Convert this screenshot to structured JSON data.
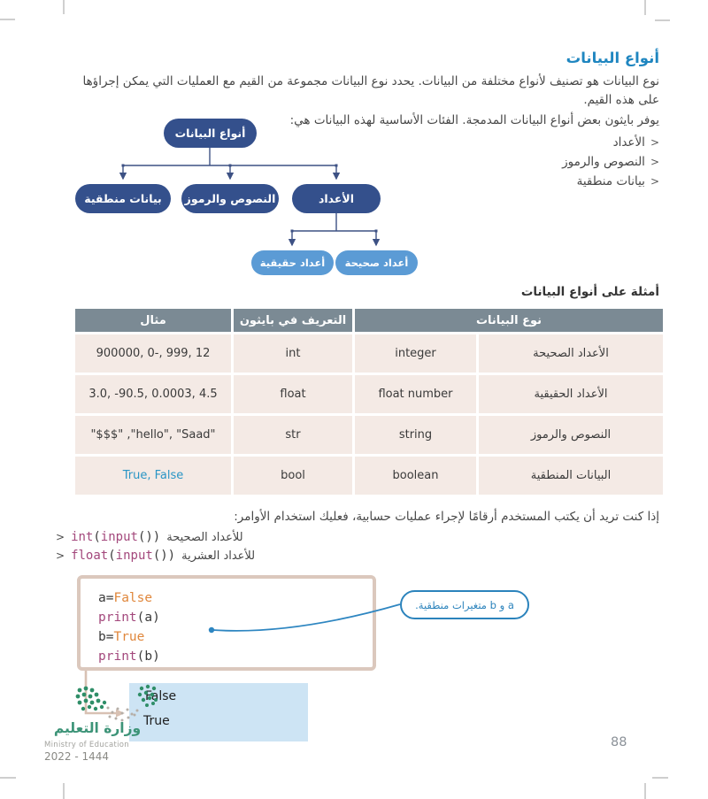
{
  "page": {
    "title": "أنواع البيانات",
    "intro": "نوع البيانات هو تصنيف لأنواع مختلفة من البيانات. يحدد نوع البيانات مجموعة من القيم مع العمليات التي يمكن إجراؤها على هذه القيم.",
    "intro2": "يوفر بايثون بعض أنواع البيانات المدمجة. الفئات الأساسية لهذه البيانات هي:",
    "bullet_glyph": ">",
    "bullets": [
      "الأعداد",
      "النصوص والرموز",
      "بيانات منطقية"
    ],
    "page_number": "88"
  },
  "diagram": {
    "root": "أنواع البيانات",
    "level1": [
      "بيانات منطقية",
      "النصوص والرموز",
      "الأعداد"
    ],
    "level2": [
      "أعداد حقيقية",
      "أعداد صحيحة"
    ]
  },
  "table": {
    "caption": "أمثلة على أنواع البيانات",
    "col_example": "مثال",
    "col_pydef": "التعريف في بايثون",
    "col_type": "نوع البيانات",
    "rows": [
      {
        "example": "900000, 0-, 999, 12",
        "pydef": "int",
        "name_en": "integer",
        "name_ar": "الأعداد الصحيحة"
      },
      {
        "example": "3.0, -90.5, 0.0003, 4.5",
        "pydef": "float",
        "name_en": "float number",
        "name_ar": "الأعداد الحقيقية"
      },
      {
        "example": "\"$$$\" ,\"hello\", \"Saad\"",
        "pydef": "str",
        "name_en": "string",
        "name_ar": "النصوص والرموز"
      },
      {
        "example": "True, False",
        "pydef": "bool",
        "name_en": "boolean",
        "name_ar": "البيانات المنطقية"
      }
    ]
  },
  "commands": {
    "lead": "إذا كنت تريد أن يكتب المستخدم أرقامًا لإجراء عمليات حسابية، فعليك استخدام الأوامر:",
    "marker": ">",
    "lines": [
      {
        "tokens": [
          {
            "t": "int",
            "c": "fn"
          },
          {
            "t": "(",
            "c": "plain"
          },
          {
            "t": "input",
            "c": "fn"
          },
          {
            "t": "())",
            "c": "plain"
          }
        ],
        "label": "للأعداد الصحيحة"
      },
      {
        "tokens": [
          {
            "t": "float",
            "c": "fn"
          },
          {
            "t": "(",
            "c": "plain"
          },
          {
            "t": "input",
            "c": "fn"
          },
          {
            "t": "())",
            "c": "plain"
          }
        ],
        "label": "للأعداد العشرية"
      }
    ]
  },
  "code_block": {
    "lines": [
      [
        {
          "t": "a=",
          "c": "plain"
        },
        {
          "t": "False",
          "c": "val"
        }
      ],
      [
        {
          "t": "print",
          "c": "fn"
        },
        {
          "t": "(a)",
          "c": "plain"
        }
      ],
      [
        {
          "t": "b=",
          "c": "plain"
        },
        {
          "t": "True",
          "c": "val"
        }
      ],
      [
        {
          "t": "print",
          "c": "fn"
        },
        {
          "t": "(b)",
          "c": "plain"
        }
      ]
    ]
  },
  "callout": {
    "text": "a و b متغيرات منطقية."
  },
  "output": {
    "lines": [
      "False",
      "True"
    ]
  },
  "footer": {
    "ministry_ar": "وزارة التعليم",
    "ministry_en": "Ministry of Education",
    "years": "2022 - 1444"
  },
  "colors": {
    "accent_blue": "#1f86c0",
    "node_dark": "#34508c",
    "node_light": "#5b9bd5",
    "table_header": "#7b8a94",
    "table_row_bg": "#f4eae5",
    "bool_blue": "#2a95c5",
    "code_fn": "#a3487c",
    "code_val": "#e0873c",
    "output_bg": "#cde4f4",
    "logo_green": "#3d9478",
    "callout_blue": "#2b83bc",
    "connector_tan": "#d8c1b3"
  }
}
